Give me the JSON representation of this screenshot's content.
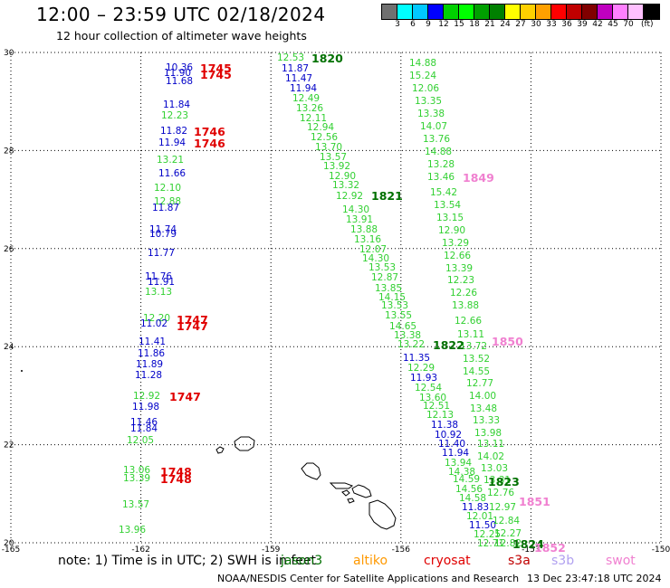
{
  "title": "12:00 – 23:59 UTC 02/18/2024",
  "subtitle": "12 hour collection of altimeter wave heights",
  "color_scale": {
    "colors": [
      "#707070",
      "#00ffff",
      "#00c8ff",
      "#0000ff",
      "#00d000",
      "#00ff00",
      "#00a000",
      "#008000",
      "#ffff00",
      "#ffd000",
      "#ffa000",
      "#ff0000",
      "#c00000",
      "#800000",
      "#c000c0",
      "#ff80ff",
      "#ffc0ff",
      "#000000"
    ],
    "labels": [
      "3",
      "6",
      "9",
      "12",
      "15",
      "18",
      "21",
      "24",
      "27",
      "30",
      "33",
      "36",
      "39",
      "42",
      "45",
      "70"
    ],
    "unit": "(ft)"
  },
  "map": {
    "lat_range": [
      20,
      30
    ],
    "lon_range": [
      -165,
      -150
    ],
    "lat_ticks": [
      "30",
      "28",
      "26",
      "24",
      "22",
      "20"
    ],
    "lon_ticks": [
      "-165",
      "-162",
      "-159",
      "-156",
      "-153",
      "-150"
    ]
  },
  "colors": {
    "green": "#32d032",
    "blue": "#0000c8",
    "red": "#e00000",
    "dark_green": "#007000",
    "pink": "#f080d0",
    "orange": "#ff9900",
    "lavender": "#b0a0f0",
    "cryosat_red": "#e00000",
    "s3a_red": "#c00000"
  },
  "passes": [
    {
      "time": "1745",
      "color": "red"
    },
    {
      "time": "1745",
      "color": "red"
    },
    {
      "time": "1746",
      "color": "red"
    },
    {
      "time": "1746",
      "color": "red"
    },
    {
      "time": "1747",
      "color": "red"
    },
    {
      "time": "1747",
      "color": "red"
    },
    {
      "time": "1747",
      "color": "red"
    },
    {
      "time": "1748",
      "color": "red"
    },
    {
      "time": "1748",
      "color": "red"
    },
    {
      "time": "1820",
      "color": "dark_green"
    },
    {
      "time": "1821",
      "color": "dark_green"
    },
    {
      "time": "1822",
      "color": "dark_green"
    },
    {
      "time": "1823",
      "color": "dark_green"
    },
    {
      "time": "1824",
      "color": "dark_green"
    },
    {
      "time": "1849",
      "color": "pink"
    },
    {
      "time": "1850",
      "color": "pink"
    },
    {
      "time": "1851",
      "color": "pink"
    },
    {
      "time": "1852",
      "color": "pink"
    }
  ],
  "wave_heights": [
    {
      "v": "10.36",
      "c": "blue"
    },
    {
      "v": "11.90",
      "c": "blue"
    },
    {
      "v": "11.68",
      "c": "blue"
    },
    {
      "v": "11.84",
      "c": "blue"
    },
    {
      "v": "12.23",
      "c": "green"
    },
    {
      "v": "11.82",
      "c": "blue"
    },
    {
      "v": "11.94",
      "c": "blue"
    },
    {
      "v": "13.21",
      "c": "green"
    },
    {
      "v": "11.66",
      "c": "blue"
    },
    {
      "v": "12.10",
      "c": "green"
    },
    {
      "v": "12.88",
      "c": "green"
    },
    {
      "v": "11.87",
      "c": "blue"
    },
    {
      "v": "11.74",
      "c": "blue"
    },
    {
      "v": "10.79",
      "c": "blue"
    },
    {
      "v": "11.77",
      "c": "blue"
    },
    {
      "v": "11.76",
      "c": "blue"
    },
    {
      "v": "11.91",
      "c": "blue"
    },
    {
      "v": "13.13",
      "c": "green"
    },
    {
      "v": "12.20",
      "c": "green"
    },
    {
      "v": "11.02",
      "c": "blue"
    },
    {
      "v": "11.41",
      "c": "blue"
    },
    {
      "v": "11.86",
      "c": "blue"
    },
    {
      "v": "11.89",
      "c": "blue"
    },
    {
      "v": "11.28",
      "c": "blue"
    },
    {
      "v": "12.92",
      "c": "green"
    },
    {
      "v": "11.98",
      "c": "blue"
    },
    {
      "v": "11.46",
      "c": "blue"
    },
    {
      "v": "11.84",
      "c": "blue"
    },
    {
      "v": "12.05",
      "c": "green"
    },
    {
      "v": "13.06",
      "c": "green"
    },
    {
      "v": "13.39",
      "c": "green"
    },
    {
      "v": "13.57",
      "c": "green"
    },
    {
      "v": "13.96",
      "c": "green"
    },
    {
      "v": "12.53",
      "c": "green"
    },
    {
      "v": "11.87",
      "c": "blue"
    },
    {
      "v": "11.47",
      "c": "blue"
    },
    {
      "v": "11.94",
      "c": "blue"
    },
    {
      "v": "12.49",
      "c": "green"
    },
    {
      "v": "13.26",
      "c": "green"
    },
    {
      "v": "12.11",
      "c": "green"
    },
    {
      "v": "12.94",
      "c": "green"
    },
    {
      "v": "12.56",
      "c": "green"
    },
    {
      "v": "13.70",
      "c": "green"
    },
    {
      "v": "13.57",
      "c": "green"
    },
    {
      "v": "13.92",
      "c": "green"
    },
    {
      "v": "12.90",
      "c": "green"
    },
    {
      "v": "13.32",
      "c": "green"
    },
    {
      "v": "12.92",
      "c": "green"
    },
    {
      "v": "14.30",
      "c": "green"
    },
    {
      "v": "13.91",
      "c": "green"
    },
    {
      "v": "13.88",
      "c": "green"
    },
    {
      "v": "13.16",
      "c": "green"
    },
    {
      "v": "12.07",
      "c": "green"
    },
    {
      "v": "14.30",
      "c": "green"
    },
    {
      "v": "13.53",
      "c": "green"
    },
    {
      "v": "12.87",
      "c": "green"
    },
    {
      "v": "13.85",
      "c": "green"
    },
    {
      "v": "14.15",
      "c": "green"
    },
    {
      "v": "13.53",
      "c": "green"
    },
    {
      "v": "13.55",
      "c": "green"
    },
    {
      "v": "14.65",
      "c": "green"
    },
    {
      "v": "13.38",
      "c": "green"
    },
    {
      "v": "13.22",
      "c": "green"
    },
    {
      "v": "11.35",
      "c": "blue"
    },
    {
      "v": "12.29",
      "c": "green"
    },
    {
      "v": "11.93",
      "c": "blue"
    },
    {
      "v": "12.54",
      "c": "green"
    },
    {
      "v": "13.60",
      "c": "green"
    },
    {
      "v": "12.51",
      "c": "green"
    },
    {
      "v": "12.13",
      "c": "green"
    },
    {
      "v": "11.38",
      "c": "blue"
    },
    {
      "v": "10.92",
      "c": "blue"
    },
    {
      "v": "11.40",
      "c": "blue"
    },
    {
      "v": "11.94",
      "c": "blue"
    },
    {
      "v": "13.94",
      "c": "green"
    },
    {
      "v": "14.38",
      "c": "green"
    },
    {
      "v": "14.59",
      "c": "green"
    },
    {
      "v": "14.56",
      "c": "green"
    },
    {
      "v": "14.58",
      "c": "green"
    },
    {
      "v": "11.83",
      "c": "blue"
    },
    {
      "v": "12.01",
      "c": "green"
    },
    {
      "v": "11.50",
      "c": "blue"
    },
    {
      "v": "12.25",
      "c": "green"
    },
    {
      "v": "12.71",
      "c": "green"
    },
    {
      "v": "14.88",
      "c": "green"
    },
    {
      "v": "15.24",
      "c": "green"
    },
    {
      "v": "12.06",
      "c": "green"
    },
    {
      "v": "13.35",
      "c": "green"
    },
    {
      "v": "13.38",
      "c": "green"
    },
    {
      "v": "14.07",
      "c": "green"
    },
    {
      "v": "13.76",
      "c": "green"
    },
    {
      "v": "14.88",
      "c": "green"
    },
    {
      "v": "13.28",
      "c": "green"
    },
    {
      "v": "13.46",
      "c": "green"
    },
    {
      "v": "15.42",
      "c": "green"
    },
    {
      "v": "13.54",
      "c": "green"
    },
    {
      "v": "13.15",
      "c": "green"
    },
    {
      "v": "12.90",
      "c": "green"
    },
    {
      "v": "13.29",
      "c": "green"
    },
    {
      "v": "12.66",
      "c": "green"
    },
    {
      "v": "13.39",
      "c": "green"
    },
    {
      "v": "12.23",
      "c": "green"
    },
    {
      "v": "12.26",
      "c": "green"
    },
    {
      "v": "13.88",
      "c": "green"
    },
    {
      "v": "12.66",
      "c": "green"
    },
    {
      "v": "13.11",
      "c": "green"
    },
    {
      "v": "13.72",
      "c": "green"
    },
    {
      "v": "13.52",
      "c": "green"
    },
    {
      "v": "14.55",
      "c": "green"
    },
    {
      "v": "12.77",
      "c": "green"
    },
    {
      "v": "14.00",
      "c": "green"
    },
    {
      "v": "13.48",
      "c": "green"
    },
    {
      "v": "13.33",
      "c": "green"
    },
    {
      "v": "13.98",
      "c": "green"
    },
    {
      "v": "13.11",
      "c": "green"
    },
    {
      "v": "14.02",
      "c": "green"
    },
    {
      "v": "13.03",
      "c": "green"
    },
    {
      "v": "13.31",
      "c": "green"
    },
    {
      "v": "12.76",
      "c": "green"
    },
    {
      "v": "12.97",
      "c": "green"
    },
    {
      "v": "12.84",
      "c": "green"
    },
    {
      "v": "12.27",
      "c": "green"
    },
    {
      "v": "12.82",
      "c": "green"
    }
  ],
  "note": {
    "prefix": "note:  1) Time is in UTC;  2) SWH is in feet",
    "legend": [
      {
        "name": "jason3",
        "color": "dark_green"
      },
      {
        "name": "altiko",
        "color": "orange"
      },
      {
        "name": "cryosat",
        "color": "cryosat_red"
      },
      {
        "name": "s3a",
        "color": "s3a_red"
      },
      {
        "name": "s3b",
        "color": "lavender"
      },
      {
        "name": "swot",
        "color": "pink"
      }
    ]
  },
  "credit": "NOAA/NESDIS Center for Satellite Applications and Research",
  "timestamp": "13 Dec 23:47:18 UTC 2024"
}
